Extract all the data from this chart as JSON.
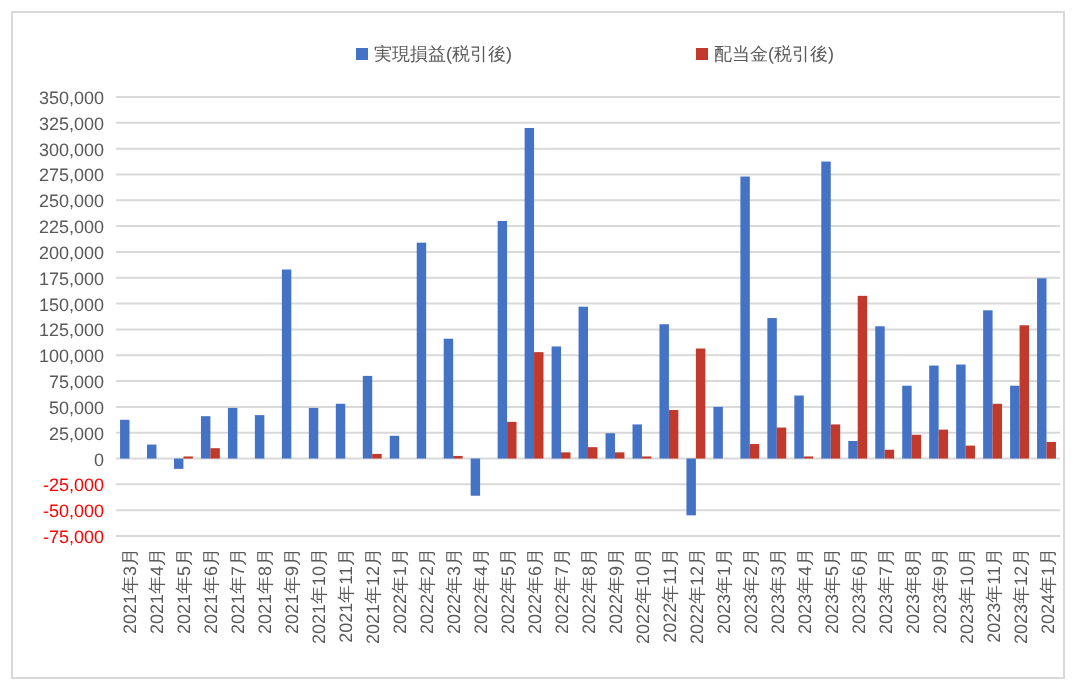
{
  "chart_data": {
    "type": "bar",
    "categories": [
      "2021年3月",
      "2021年4月",
      "2021年5月",
      "2021年6月",
      "2021年7月",
      "2021年8月",
      "2021年9月",
      "2021年10月",
      "2021年11月",
      "2021年12月",
      "2022年1月",
      "2022年2月",
      "2022年3月",
      "2022年4月",
      "2022年5月",
      "2022年6月",
      "2022年7月",
      "2022年8月",
      "2022年9月",
      "2022年10月",
      "2022年11月",
      "2022年12月",
      "2023年1月",
      "2023年2月",
      "2023年3月",
      "2023年4月",
      "2023年5月",
      "2023年6月",
      "2023年7月",
      "2023年8月",
      "2023年9月",
      "2023年10月",
      "2023年11月",
      "2023年12月",
      "2024年1月"
    ],
    "series": [
      {
        "name": "実現損益(税引後)",
        "color": "#4472c4",
        "values": [
          37500,
          13500,
          -10000,
          41000,
          49000,
          42000,
          183000,
          49000,
          53000,
          80000,
          22000,
          209000,
          116000,
          -36000,
          230000,
          320000,
          108500,
          147000,
          24500,
          33000,
          130000,
          -55000,
          50000,
          273000,
          136000,
          61000,
          287500,
          17000,
          128000,
          70500,
          90000,
          91000,
          143500,
          70500,
          174500
        ]
      },
      {
        "name": "配当金(税引後)",
        "color": "#c0392b",
        "values": [
          0,
          0,
          2000,
          10000,
          0,
          0,
          0,
          0,
          0,
          4500,
          0,
          0,
          2500,
          0,
          35500,
          103000,
          6000,
          11000,
          6000,
          2000,
          47000,
          106500,
          0,
          14000,
          30000,
          2000,
          33000,
          157500,
          8500,
          23000,
          28000,
          12500,
          53000,
          129000,
          16000
        ]
      }
    ],
    "ylim": [
      -75000,
      350000
    ],
    "yticks": [
      {
        "value": -75000,
        "label": "-75,000"
      },
      {
        "value": -50000,
        "label": "-50,000"
      },
      {
        "value": -25000,
        "label": "-25,000"
      },
      0,
      {
        "value": 25000,
        "label": "25,000"
      },
      {
        "value": 50000,
        "label": "50,000"
      },
      {
        "value": 75000,
        "label": "75,000"
      },
      {
        "value": 100000,
        "label": "100,000"
      },
      {
        "value": 125000,
        "label": "125,000"
      },
      {
        "value": 150000,
        "label": "150,000"
      },
      {
        "value": 175000,
        "label": "175,000"
      },
      {
        "value": 200000,
        "label": "200,000"
      },
      {
        "value": 225000,
        "label": "225,000"
      },
      {
        "value": 250000,
        "label": "250,000"
      },
      {
        "value": 275000,
        "label": "275,000"
      },
      {
        "value": 300000,
        "label": "300,000"
      },
      {
        "value": 325000,
        "label": "325,000"
      },
      {
        "value": 350000,
        "label": "350,000"
      }
    ],
    "grid": "y",
    "legend": "top"
  }
}
